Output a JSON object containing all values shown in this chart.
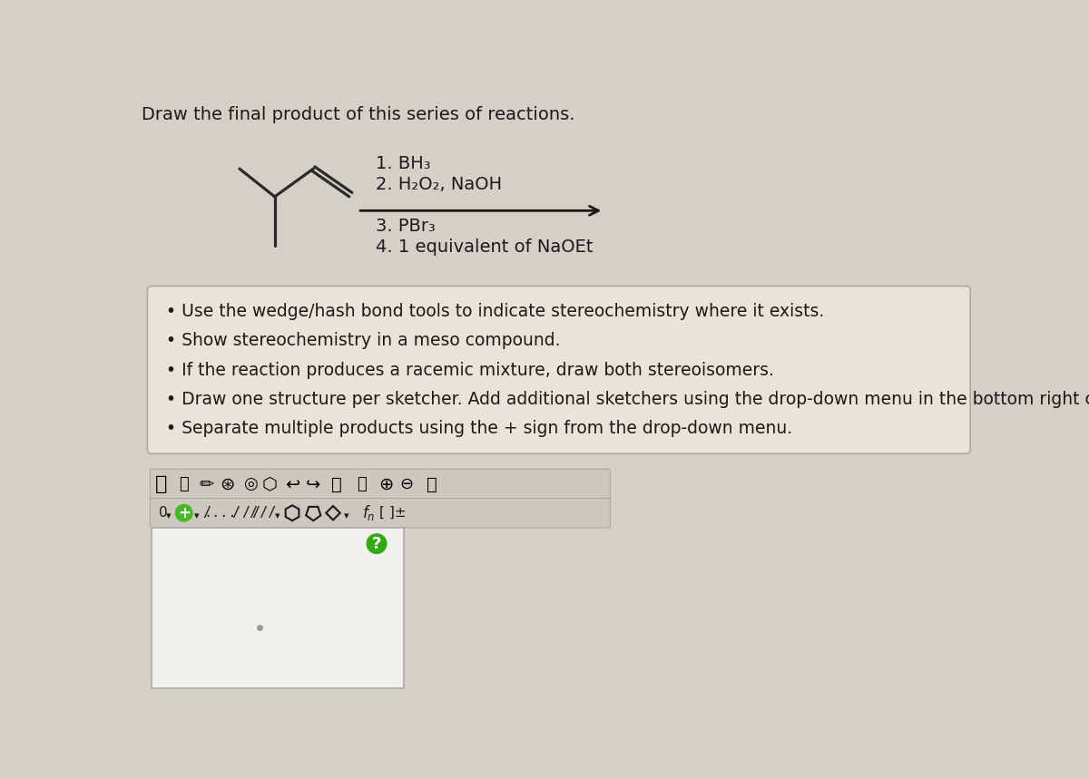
{
  "bg_color": "#d4d0c8",
  "title": "Draw the final product of this series of reactions.",
  "title_fontsize": 14,
  "reaction_steps": [
    "1. BH₃",
    "2. H₂O₂, NaOH",
    "3. PBr₃",
    "4. 1 equivalent of NaOEt"
  ],
  "bullet_points": [
    "Use the wedge/hash bond tools to indicate stereochemistry where it exists.",
    "Show stereochemistry in a meso compound.",
    "If the reaction produces a racemic mixture, draw both stereoisomers.",
    "Draw one structure per sketcher. Add additional sketchers using the drop-down menu in the bottom right corner.",
    "Separate multiple products using the + sign from the drop-down menu."
  ],
  "box_bg_color": "#e8e4da",
  "sketcher_color": "#f0eeea",
  "arrow_color": "#1a1a1a",
  "text_color": "#1a1a1a",
  "line_color": "#2a2a2a",
  "mol_lw": 2.3,
  "step_fontsize": 14,
  "bullet_fontsize": 13.5
}
